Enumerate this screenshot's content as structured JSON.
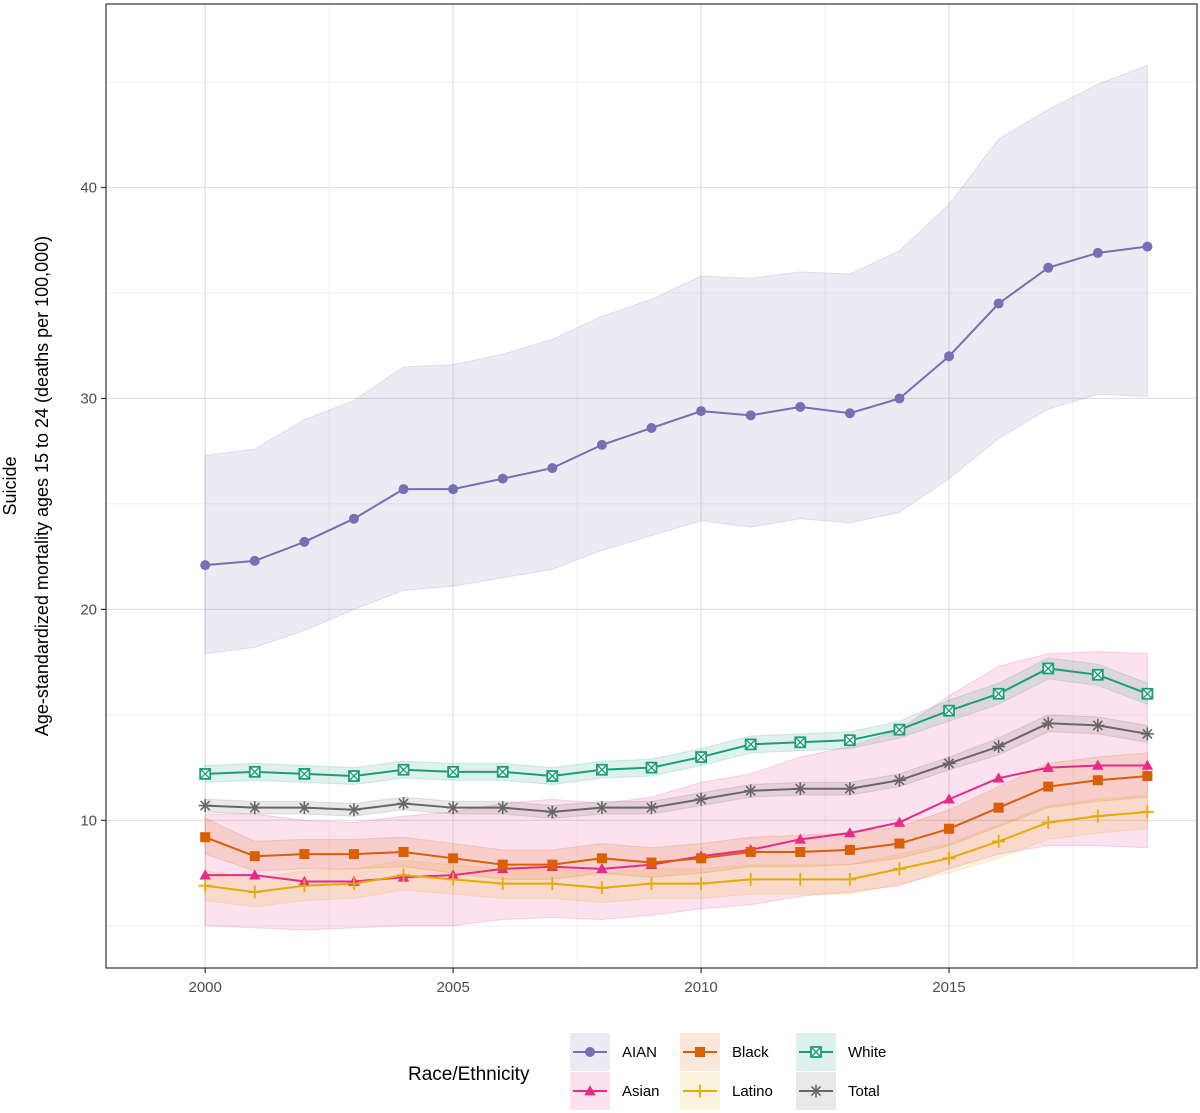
{
  "chart_data": {
    "type": "line",
    "title": "",
    "xlabel": "",
    "ylabel": "Age-standardized mortality ages 15 to 24 (deaths per 100,000)",
    "ylabel_top": "Suicide",
    "x": [
      2000,
      2001,
      2002,
      2003,
      2004,
      2005,
      2006,
      2007,
      2008,
      2009,
      2010,
      2011,
      2012,
      2013,
      2014,
      2015,
      2016,
      2017,
      2018,
      2019
    ],
    "xlim": [
      1998.0,
      2020.0
    ],
    "ylim": [
      3.0,
      48.7
    ],
    "x_ticks": [
      2000,
      2005,
      2010,
      2015
    ],
    "y_ticks": [
      10,
      20,
      30,
      40
    ],
    "x_tick_labels": [
      "2000",
      "2005",
      "2010",
      "2015"
    ],
    "y_tick_labels": [
      "10",
      "20",
      "30",
      "40"
    ],
    "grid": true,
    "legend": {
      "title": "Race/Ethnicity",
      "position": "bottom"
    },
    "series": [
      {
        "name": "AIAN",
        "color": "#7570b3",
        "marker": "circle",
        "values": [
          22.1,
          22.3,
          23.2,
          24.3,
          25.7,
          25.7,
          26.2,
          26.7,
          27.8,
          28.6,
          29.4,
          29.2,
          29.6,
          29.3,
          30.0,
          32.0,
          34.5,
          36.2,
          36.9,
          37.2
        ],
        "lower": [
          17.9,
          18.2,
          19.0,
          20.0,
          20.9,
          21.1,
          21.5,
          21.9,
          22.8,
          23.5,
          24.2,
          23.9,
          24.3,
          24.1,
          24.6,
          26.2,
          28.1,
          29.5,
          30.2,
          30.1
        ],
        "upper": [
          27.3,
          27.6,
          29.0,
          29.9,
          31.5,
          31.6,
          32.1,
          32.8,
          33.9,
          34.7,
          35.8,
          35.7,
          36.0,
          35.9,
          37.0,
          39.2,
          42.3,
          43.7,
          44.9,
          45.8
        ]
      },
      {
        "name": "Asian",
        "color": "#e7298a",
        "marker": "triangle",
        "values": [
          7.4,
          7.4,
          7.1,
          7.1,
          7.3,
          7.4,
          7.7,
          7.8,
          7.7,
          7.9,
          8.3,
          8.6,
          9.1,
          9.4,
          9.9,
          11.0,
          12.0,
          12.5,
          12.6,
          12.6
        ],
        "lower": [
          5.0,
          4.9,
          4.8,
          4.9,
          5.0,
          5.0,
          5.3,
          5.4,
          5.3,
          5.5,
          5.8,
          6.0,
          6.4,
          6.6,
          6.9,
          7.7,
          8.4,
          8.8,
          8.8,
          8.7
        ],
        "upper": [
          10.3,
          10.3,
          10.0,
          9.9,
          10.2,
          10.4,
          10.8,
          11.0,
          10.8,
          11.1,
          11.8,
          12.2,
          13.0,
          13.5,
          14.3,
          15.9,
          17.3,
          17.9,
          18.0,
          17.9
        ]
      },
      {
        "name": "Black",
        "color": "#d95f02",
        "marker": "square",
        "values": [
          9.2,
          8.3,
          8.4,
          8.4,
          8.5,
          8.2,
          7.9,
          7.9,
          8.2,
          8.0,
          8.2,
          8.5,
          8.5,
          8.6,
          8.9,
          9.6,
          10.6,
          11.6,
          11.9,
          12.1
        ],
        "lower": [
          8.4,
          7.6,
          7.7,
          7.7,
          7.8,
          7.5,
          7.2,
          7.2,
          7.5,
          7.3,
          7.5,
          7.8,
          7.8,
          7.9,
          8.2,
          8.8,
          9.7,
          10.6,
          10.9,
          11.1
        ],
        "upper": [
          10.1,
          9.0,
          9.1,
          9.1,
          9.2,
          8.9,
          8.6,
          8.6,
          8.9,
          8.7,
          8.9,
          9.2,
          9.3,
          9.4,
          9.7,
          10.5,
          11.6,
          12.7,
          13.0,
          13.2
        ]
      },
      {
        "name": "Latino",
        "color": "#e6ab02",
        "marker": "plus",
        "values": [
          6.9,
          6.6,
          6.9,
          7.0,
          7.4,
          7.2,
          7.0,
          7.0,
          6.8,
          7.0,
          7.0,
          7.2,
          7.2,
          7.2,
          7.7,
          8.2,
          9.0,
          9.9,
          10.2,
          10.4
        ],
        "lower": [
          6.2,
          5.9,
          6.2,
          6.3,
          6.7,
          6.5,
          6.3,
          6.3,
          6.1,
          6.3,
          6.3,
          6.5,
          6.5,
          6.5,
          7.0,
          7.5,
          8.2,
          9.1,
          9.4,
          9.6
        ],
        "upper": [
          7.6,
          7.3,
          7.6,
          7.7,
          8.1,
          7.9,
          7.7,
          7.7,
          7.5,
          7.7,
          7.7,
          7.9,
          7.9,
          7.9,
          8.4,
          8.9,
          9.8,
          10.7,
          11.0,
          11.2
        ]
      },
      {
        "name": "White",
        "color": "#1b9e77",
        "marker": "square-x",
        "values": [
          12.2,
          12.3,
          12.2,
          12.1,
          12.4,
          12.3,
          12.3,
          12.1,
          12.4,
          12.5,
          13.0,
          13.6,
          13.7,
          13.8,
          14.3,
          15.2,
          16.0,
          17.2,
          16.9,
          16.0
        ],
        "lower": [
          11.8,
          11.9,
          11.8,
          11.7,
          12.0,
          11.9,
          11.9,
          11.7,
          12.0,
          12.1,
          12.6,
          13.2,
          13.3,
          13.4,
          13.9,
          14.7,
          15.5,
          16.7,
          16.4,
          15.5
        ],
        "upper": [
          12.6,
          12.7,
          12.6,
          12.5,
          12.8,
          12.7,
          12.7,
          12.5,
          12.8,
          12.9,
          13.4,
          14.0,
          14.1,
          14.2,
          14.7,
          15.7,
          16.5,
          17.7,
          17.4,
          16.5
        ]
      },
      {
        "name": "Total",
        "color": "#666666",
        "marker": "asterisk",
        "values": [
          10.7,
          10.6,
          10.6,
          10.5,
          10.8,
          10.6,
          10.6,
          10.4,
          10.6,
          10.6,
          11.0,
          11.4,
          11.5,
          11.5,
          11.9,
          12.7,
          13.5,
          14.6,
          14.5,
          14.1
        ],
        "lower": [
          10.4,
          10.3,
          10.3,
          10.2,
          10.5,
          10.3,
          10.3,
          10.1,
          10.3,
          10.3,
          10.7,
          11.1,
          11.2,
          11.2,
          11.6,
          12.4,
          13.1,
          14.2,
          14.1,
          13.7
        ],
        "upper": [
          11.0,
          10.9,
          10.9,
          10.8,
          11.1,
          10.9,
          10.9,
          10.7,
          10.9,
          10.9,
          11.3,
          11.7,
          11.8,
          11.8,
          12.2,
          13.0,
          13.9,
          15.0,
          14.9,
          14.5
        ]
      }
    ]
  }
}
